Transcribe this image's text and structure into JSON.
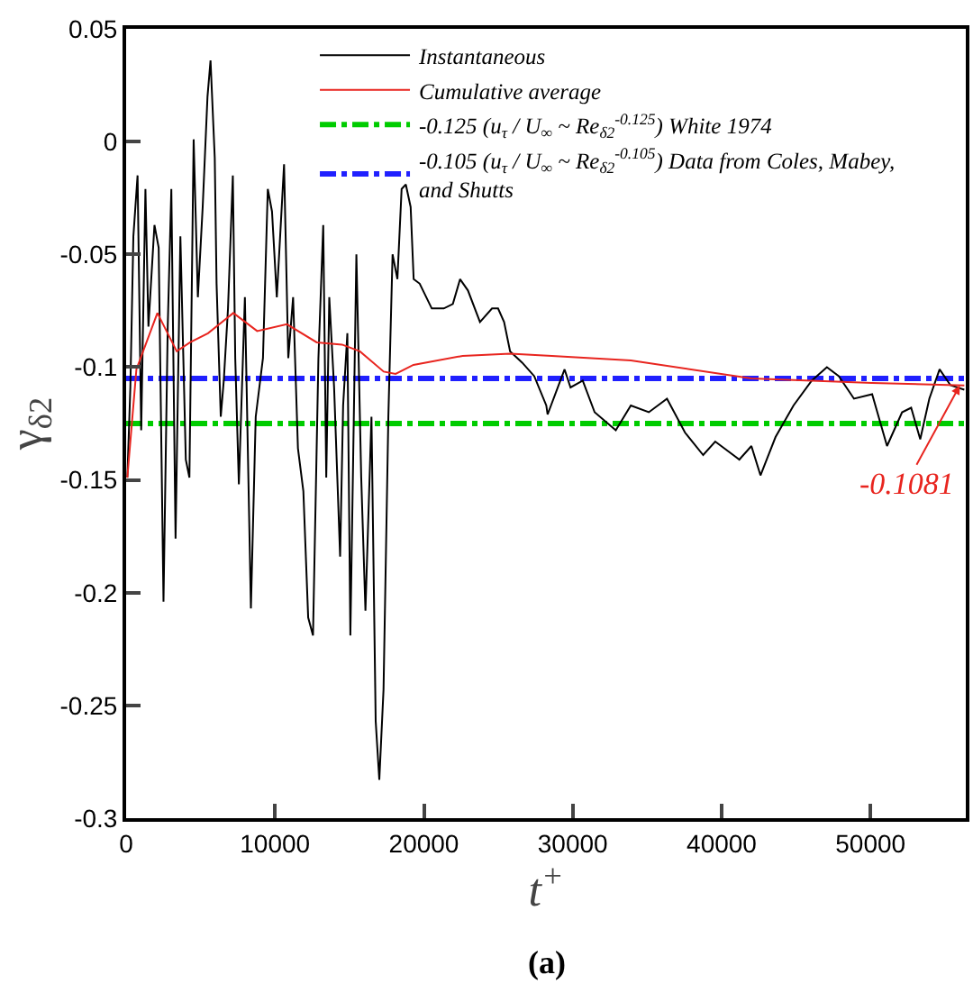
{
  "chart_data": {
    "type": "line",
    "xlabel": "t$^{+}$",
    "ylabel": "γ$_{δ2}$",
    "xlim": [
      0,
      56400
    ],
    "xticks": [
      0,
      10000,
      20000,
      30000,
      40000,
      50000
    ],
    "ylim": [
      -0.3,
      0.05
    ],
    "yticks": [
      -0.3,
      -0.25,
      -0.2,
      -0.15,
      -0.1,
      -0.05,
      0,
      0.05
    ],
    "grid": false,
    "legend": "top",
    "marker": "none",
    "series": [
      {
        "name": "Instantaneous",
        "color": "#000000",
        "line_style": "solid",
        "x": [
          81,
          283,
          486,
          769,
          1012,
          1296,
          1498,
          1903,
          2186,
          2510,
          2794,
          3037,
          3320,
          3644,
          4009,
          4251,
          4535,
          4818,
          5142,
          5466,
          5669,
          5952,
          6074,
          6357,
          6559,
          6843,
          7167,
          7329,
          7572,
          7977,
          8381,
          8705,
          9191,
          9515,
          9799,
          10122,
          10608,
          10892,
          11216,
          11540,
          11904,
          12228,
          12552,
          12916,
          13240,
          13443,
          13645,
          13969,
          14374,
          14576,
          14860,
          15062,
          15467,
          15791,
          16075,
          16480,
          16763,
          17006,
          17289,
          17613,
          17897,
          18221,
          18504,
          18787,
          19111,
          19314,
          19719,
          20529,
          21338,
          21946,
          22432,
          22958,
          23768,
          24578,
          24983,
          25387,
          25792,
          26602,
          27412,
          28222,
          28310,
          29450,
          29850,
          30670,
          31470,
          32890,
          33900,
          35110,
          36330,
          37540,
          38760,
          39570,
          41190,
          42000,
          42610,
          43620,
          44830,
          46050,
          47070,
          47870,
          48890,
          50110,
          51110,
          52120,
          52730,
          53340,
          53950,
          54640,
          55370,
          56300
        ],
        "values": [
          -0.149,
          -0.109,
          -0.042,
          -0.015,
          -0.128,
          -0.021,
          -0.082,
          -0.037,
          -0.047,
          -0.204,
          -0.082,
          -0.021,
          -0.176,
          -0.042,
          -0.141,
          -0.149,
          0.001,
          -0.069,
          -0.029,
          0.02,
          0.036,
          -0.007,
          -0.063,
          -0.122,
          -0.106,
          -0.074,
          -0.015,
          -0.096,
          -0.152,
          -0.069,
          -0.207,
          -0.122,
          -0.096,
          -0.021,
          -0.031,
          -0.069,
          -0.01,
          -0.096,
          -0.069,
          -0.136,
          -0.155,
          -0.211,
          -0.219,
          -0.096,
          -0.037,
          -0.149,
          -0.069,
          -0.109,
          -0.184,
          -0.117,
          -0.085,
          -0.219,
          -0.05,
          -0.149,
          -0.208,
          -0.122,
          -0.257,
          -0.283,
          -0.243,
          -0.122,
          -0.05,
          -0.061,
          -0.021,
          -0.019,
          -0.029,
          -0.061,
          -0.063,
          -0.074,
          -0.074,
          -0.072,
          -0.061,
          -0.066,
          -0.08,
          -0.074,
          -0.074,
          -0.08,
          -0.093,
          -0.098,
          -0.104,
          -0.117,
          -0.121,
          -0.101,
          -0.109,
          -0.106,
          -0.12,
          -0.128,
          -0.117,
          -0.12,
          -0.114,
          -0.129,
          -0.139,
          -0.133,
          -0.141,
          -0.135,
          -0.148,
          -0.131,
          -0.117,
          -0.106,
          -0.1,
          -0.104,
          -0.114,
          -0.112,
          -0.135,
          -0.12,
          -0.118,
          -0.132,
          -0.114,
          -0.101,
          -0.108,
          -0.11
        ]
      },
      {
        "name": "Cumulative average",
        "color": "#e8251f",
        "line_style": "solid",
        "x": [
          80,
          690,
          2100,
          3400,
          4300,
          5500,
          7200,
          8800,
          10800,
          12800,
          14500,
          15700,
          17300,
          18100,
          19300,
          22600,
          25800,
          28600,
          33900,
          42000,
          50100,
          56300
        ],
        "values": [
          -0.149,
          -0.101,
          -0.076,
          -0.093,
          -0.089,
          -0.085,
          -0.076,
          -0.084,
          -0.081,
          -0.089,
          -0.09,
          -0.093,
          -0.102,
          -0.103,
          -0.099,
          -0.095,
          -0.094,
          -0.095,
          -0.097,
          -0.105,
          -0.107,
          -0.1081
        ]
      }
    ],
    "ref_lines": [
      {
        "axis": "y",
        "value": -0.125,
        "label": "-0.125 (u$_{τ}$ / U$_{∞}$ ~ Re$_{δ2}$$^{-0.125}$) White 1974",
        "color": "#00cc00",
        "line_style": "dashdot"
      },
      {
        "axis": "y",
        "value": -0.105,
        "label": "-0.105 (u$_{τ}$ / U$_{∞}$ ~ Re$_{δ2}$$^{-0.105}$) Data from Coles, Mabey,\nand Shutts",
        "color": "#2020ff",
        "line_style": "dashdot"
      }
    ],
    "annotations": [
      {
        "text": "-0.1081",
        "x": 56000,
        "y": -0.1081
      },
      "(a)"
    ]
  }
}
